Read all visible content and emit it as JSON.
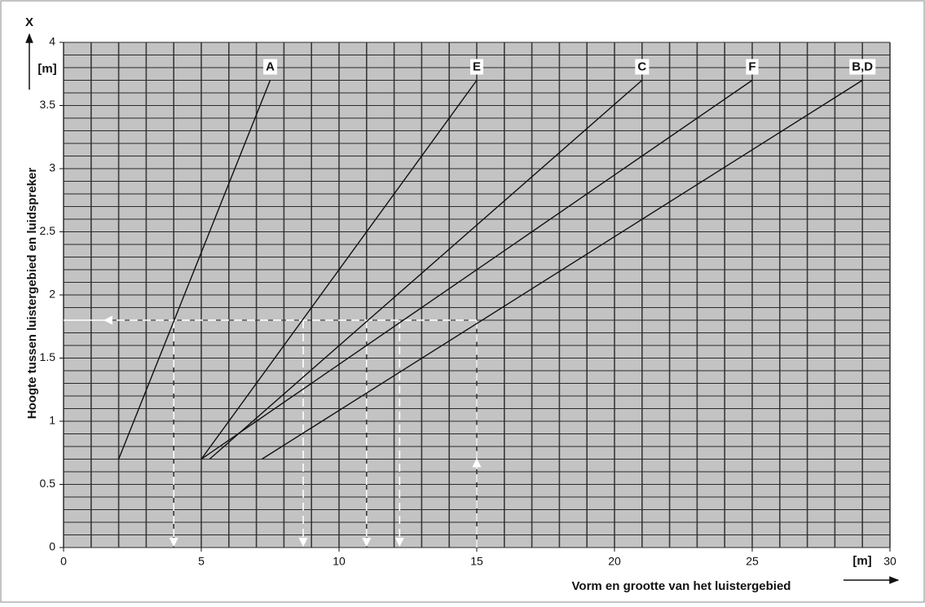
{
  "chart_data": {
    "type": "line",
    "x_label": "Vorm en grootte van het luistergebied",
    "x_unit": "[m]",
    "y_label": "Hoogte tussen luistergebied en luidspreker",
    "y_unit": "[m]",
    "y_symbol": "X",
    "xlim": [
      0,
      30
    ],
    "ylim": [
      0,
      4
    ],
    "xticks": [
      0,
      5,
      10,
      15,
      20,
      25,
      30
    ],
    "yticks": [
      0,
      0.5,
      1,
      1.5,
      2,
      2.5,
      3,
      3.5,
      4
    ],
    "minor_grid": {
      "x": 1,
      "y": 0.1
    },
    "grid": true,
    "plot_color": "#c3c3c3",
    "series": [
      {
        "name": "A",
        "color": "#111111",
        "x": [
          2,
          7.5
        ],
        "values": [
          0.7,
          3.7
        ]
      },
      {
        "name": "E",
        "color": "#111111",
        "x": [
          5,
          15
        ],
        "values": [
          0.7,
          3.7
        ]
      },
      {
        "name": "C",
        "color": "#111111",
        "x": [
          5.3,
          21
        ],
        "values": [
          0.7,
          3.7
        ]
      },
      {
        "name": "F",
        "color": "#111111",
        "x": [
          5,
          25
        ],
        "values": [
          0.7,
          3.7
        ]
      },
      {
        "name": "B,D",
        "color": "#111111",
        "x": [
          7.2,
          29
        ],
        "values": [
          0.7,
          3.7
        ]
      }
    ],
    "guide": {
      "y": 1.8,
      "x_down": [
        4,
        8.7,
        11,
        12.2
      ],
      "x_up": 15
    }
  }
}
